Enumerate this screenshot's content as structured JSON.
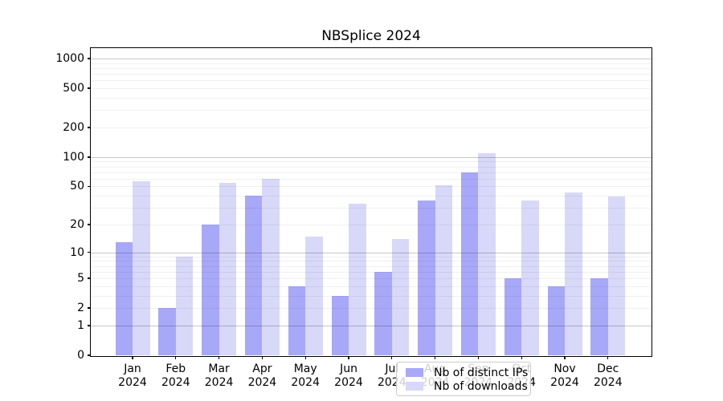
{
  "title": "NBSplice 2024",
  "chart_data": {
    "type": "bar",
    "title": "NBSplice 2024",
    "categories": [
      {
        "month": "Jan",
        "year": "2024"
      },
      {
        "month": "Feb",
        "year": "2024"
      },
      {
        "month": "Mar",
        "year": "2024"
      },
      {
        "month": "Apr",
        "year": "2024"
      },
      {
        "month": "May",
        "year": "2024"
      },
      {
        "month": "Jun",
        "year": "2024"
      },
      {
        "month": "Jul",
        "year": "2024"
      },
      {
        "month": "Aug",
        "year": "2024"
      },
      {
        "month": "Sep",
        "year": "2024"
      },
      {
        "month": "Oct",
        "year": "2024"
      },
      {
        "month": "Nov",
        "year": "2024"
      },
      {
        "month": "Dec",
        "year": "2024"
      }
    ],
    "series": [
      {
        "name": "Nb of distinct IPs",
        "color": "#a8a8f8",
        "values": [
          13,
          2,
          20,
          40,
          4,
          3,
          6,
          36,
          70,
          5,
          4,
          5
        ]
      },
      {
        "name": "Nb of downloads",
        "color": "#d8d8f8",
        "values": [
          57,
          9,
          54,
          60,
          15,
          33,
          14,
          51,
          110,
          36,
          43,
          39
        ]
      }
    ],
    "y_scale": "log1p",
    "y_ticks": [
      1000,
      500,
      200,
      100,
      50,
      20,
      10,
      5,
      2,
      1,
      0
    ],
    "ylim": [
      0,
      1276
    ],
    "grid": "both",
    "legend_position": "lower center",
    "xlabel": "",
    "ylabel": ""
  },
  "colors": {
    "bar_distinct_ips": "#a8a8f8",
    "bar_downloads": "#d8d8f8",
    "grid_major": "rgba(0,0,0,0.22)",
    "grid_minor": "rgba(0,0,0,0.06)",
    "spine": "#000000",
    "background": "#ffffff"
  }
}
